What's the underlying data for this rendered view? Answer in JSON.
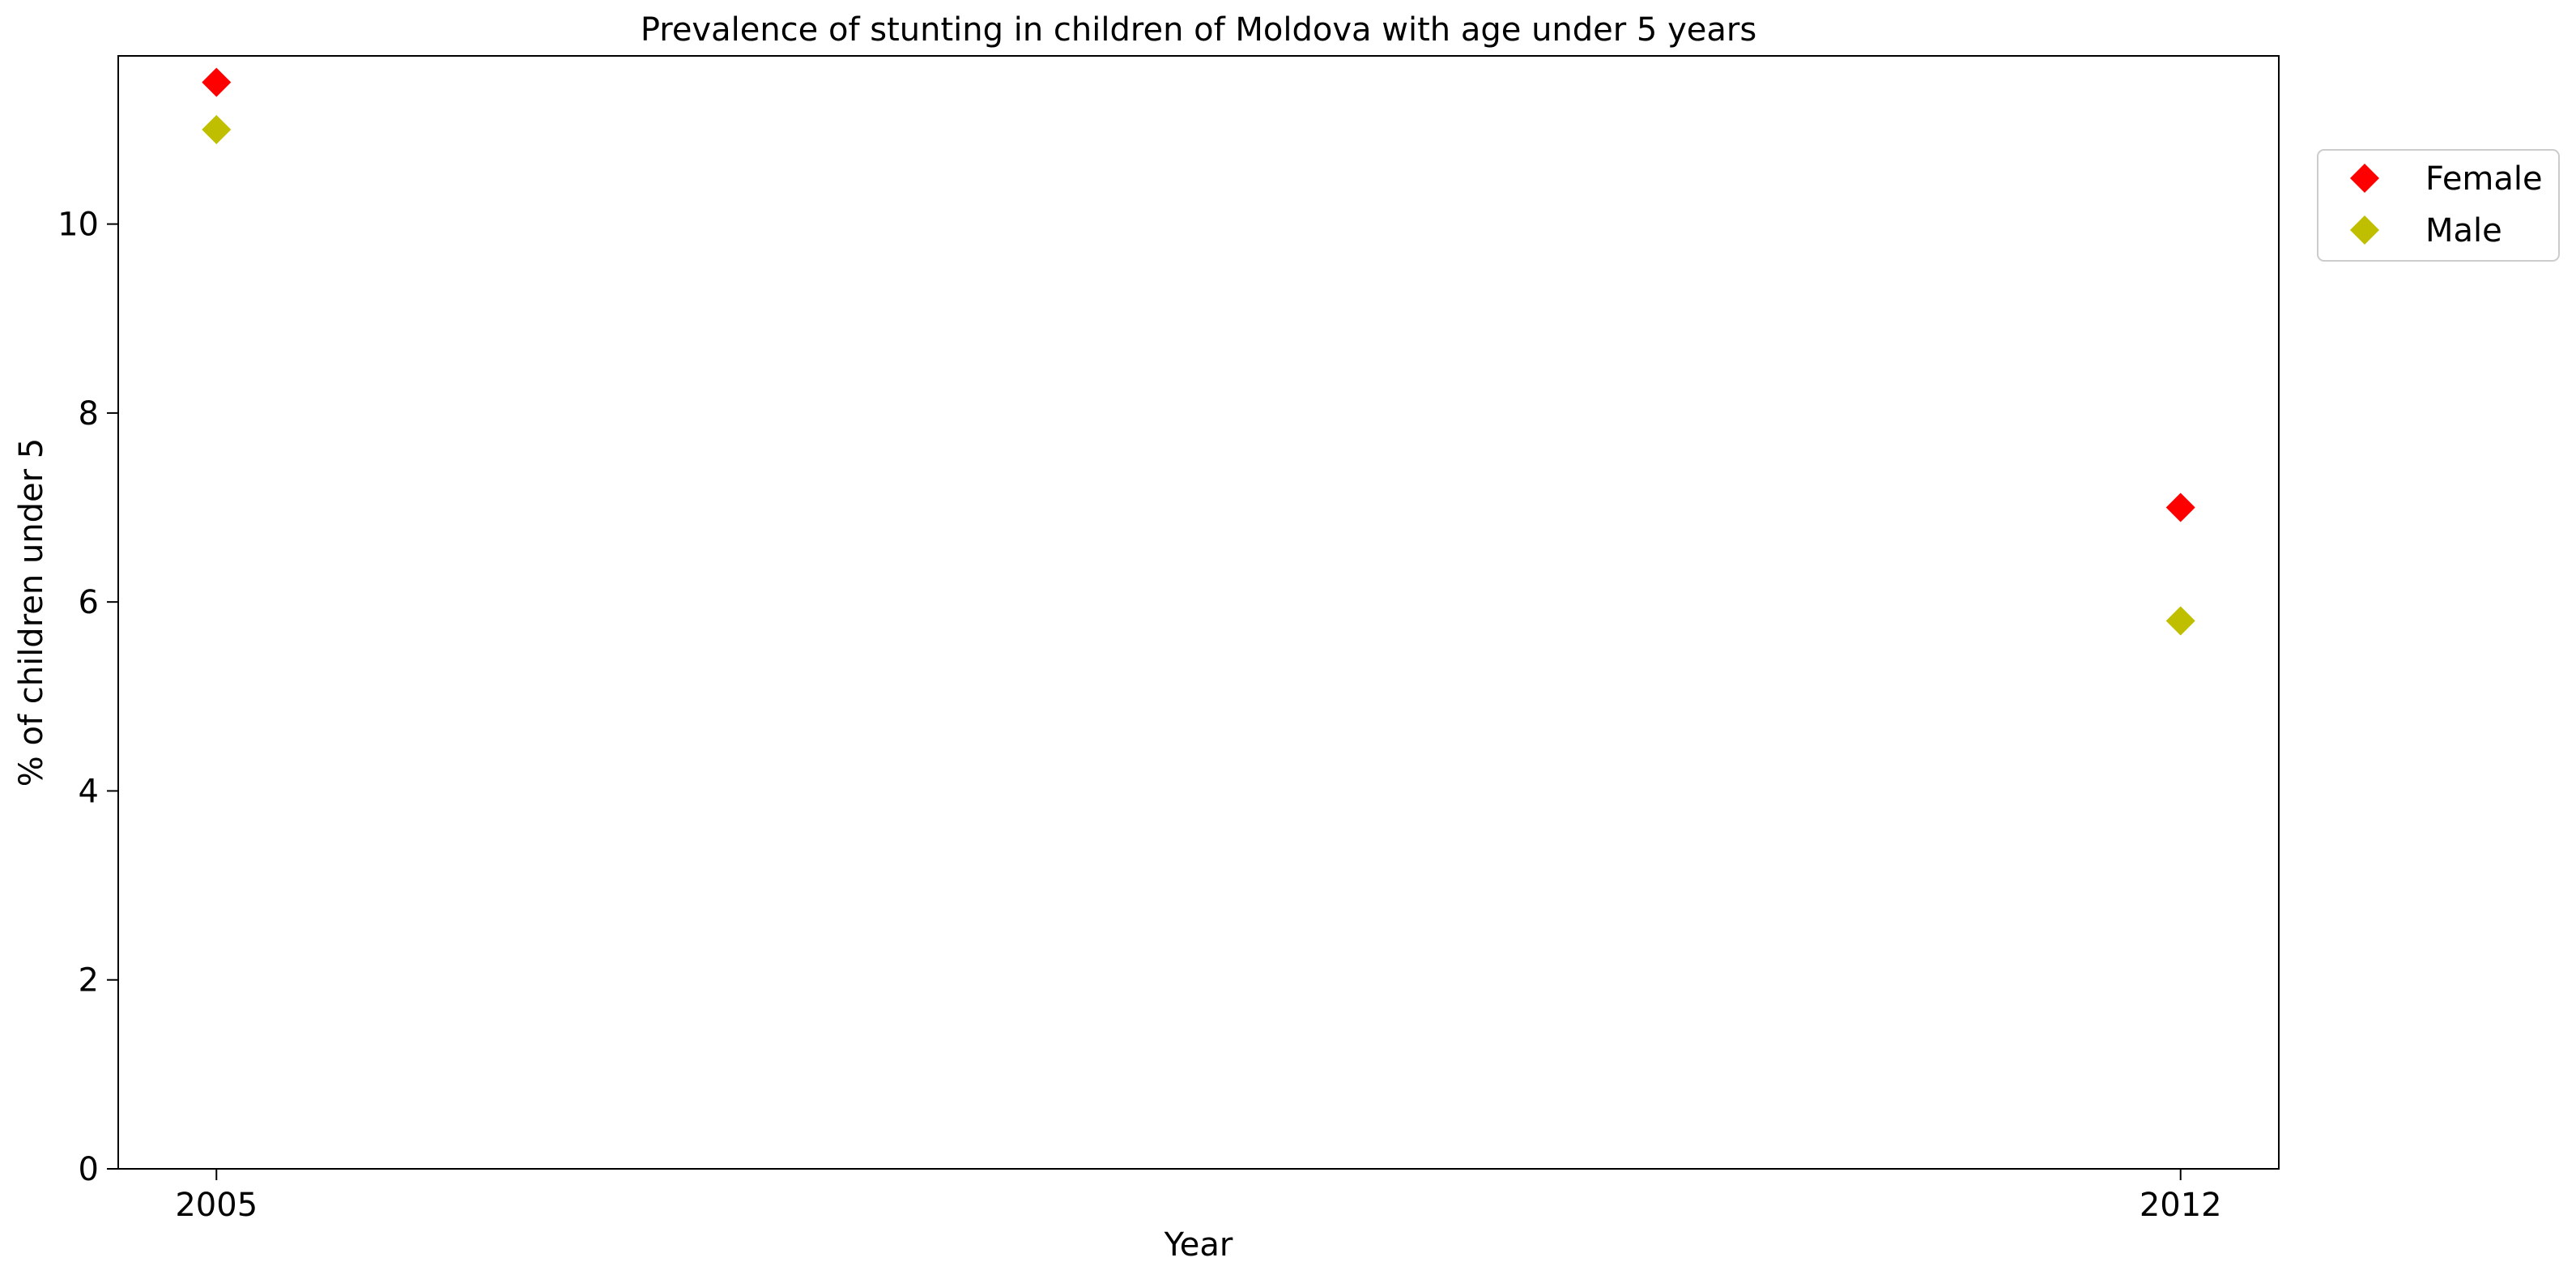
{
  "chart_data": {
    "type": "scatter",
    "title": "Prevalence of stunting in children of Moldova with age under 5 years",
    "xlabel": "Year",
    "ylabel": "% of children under 5",
    "x_categories": [
      "2005",
      "2012"
    ],
    "xlim": [
      2004.65,
      2012.35
    ],
    "ylim": [
      0,
      11.78
    ],
    "y_ticks": [
      0,
      2,
      4,
      6,
      8,
      10
    ],
    "grid": false,
    "legend_position": "outside top-right",
    "series": [
      {
        "name": "Female",
        "color": "#ff0000",
        "marker": "diamond",
        "points": [
          {
            "x": "2005",
            "y": 11.5
          },
          {
            "x": "2012",
            "y": 7.0
          }
        ]
      },
      {
        "name": "Male",
        "color": "#bfbf00",
        "marker": "diamond",
        "points": [
          {
            "x": "2005",
            "y": 11.0
          },
          {
            "x": "2012",
            "y": 5.8
          }
        ]
      }
    ]
  }
}
